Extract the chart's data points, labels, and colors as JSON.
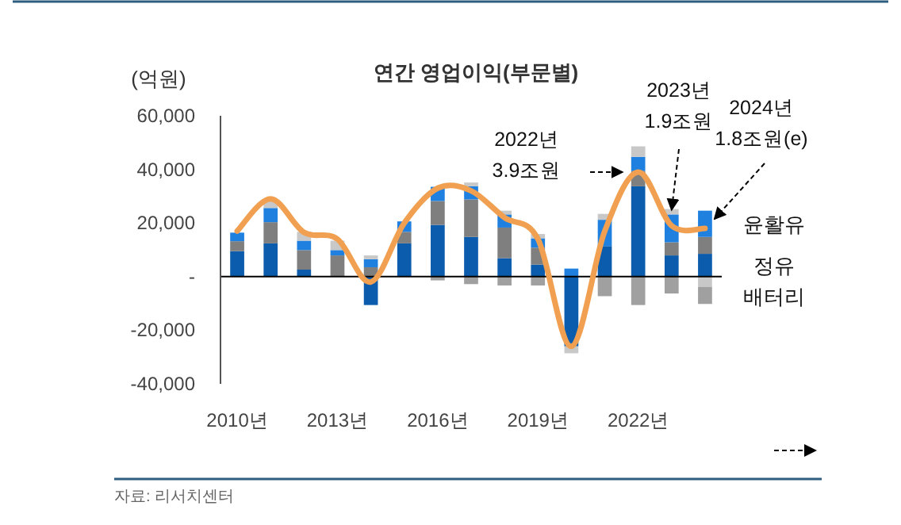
{
  "chart_data": {
    "type": "bar",
    "stacked": true,
    "title": "연간 영업이익(부문별)",
    "ylabel": "(억원)",
    "categories": [
      "2010년",
      null,
      null,
      "2013년",
      null,
      null,
      "2016년",
      null,
      null,
      "2019년",
      null,
      null,
      "2022년",
      null,
      null
    ],
    "ylim": [
      -40000,
      60000
    ],
    "yticks": [
      {
        "value": -40000,
        "label": "-40,000"
      },
      {
        "value": -20000,
        "label": "-20,000"
      },
      {
        "value": 0,
        "label": "-"
      },
      {
        "value": 20000,
        "label": "20,000"
      },
      {
        "value": 40000,
        "label": "40,000"
      },
      {
        "value": 60000,
        "label": "60,000"
      }
    ],
    "series": [
      {
        "name": "정유",
        "color": "#0b5cad",
        "values": [
          9500,
          12400,
          2600,
          null,
          -10600,
          12400,
          19300,
          14800,
          6900,
          4500,
          -26000,
          11400,
          33700,
          7900,
          8500
        ]
      },
      {
        "color": "#7f7f7f",
        "values": [
          3700,
          7900,
          7300,
          7900,
          3500,
          4300,
          8900,
          14000,
          11400,
          6300,
          null,
          null,
          5700,
          4900,
          6300
        ]
      },
      {
        "name": "윤활유",
        "color": "#1f80e0",
        "values": [
          3200,
          5300,
          3500,
          2000,
          3000,
          3900,
          5300,
          4900,
          4900,
          3500,
          3000,
          9800,
          5300,
          10400,
          9800
        ]
      },
      {
        "color": "#c8c8c8",
        "values": [
          null,
          2600,
          3300,
          3500,
          1400,
          null,
          null,
          1400,
          1400,
          1600,
          -2600,
          2200,
          3900,
          2000,
          -3900
        ]
      },
      {
        "name": "배터리",
        "color": "#a0a0a0",
        "values": [
          null,
          null,
          null,
          null,
          null,
          null,
          -1400,
          -2800,
          -3300,
          -3300,
          null,
          -7300,
          -10600,
          -6300,
          -6300
        ]
      },
      {
        "type": "line",
        "color": "#f0a050",
        "values": [
          17000,
          29000,
          16500,
          14000,
          -2000,
          20000,
          33000,
          32000,
          22000,
          14000,
          -26000,
          17000,
          39000,
          19000,
          18000
        ]
      }
    ],
    "annotations": [
      "2022년\n3.9조원",
      "2023년\n1.9조원",
      "2024년\n1.8조원(e)",
      "자료: 리서치센터"
    ]
  }
}
